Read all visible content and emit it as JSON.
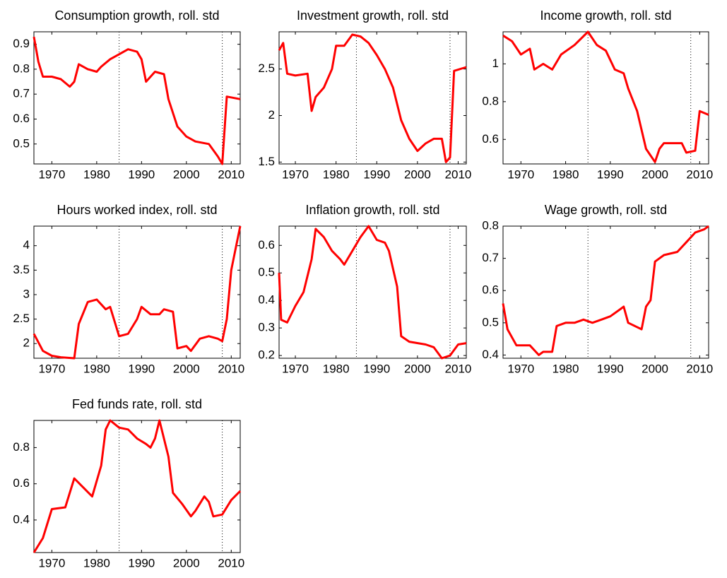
{
  "chart_data": [
    {
      "type": "line",
      "title": "Consumption growth, roll. std",
      "color": "#ff0000",
      "x": [
        1966,
        1967,
        1968,
        1970,
        1972,
        1974,
        1975,
        1976,
        1978,
        1980,
        1981,
        1983,
        1985,
        1987,
        1989,
        1990,
        1991,
        1993,
        1995,
        1996,
        1998,
        2000,
        2002,
        2005,
        2007,
        2008,
        2009,
        2012
      ],
      "values": [
        0.93,
        0.83,
        0.77,
        0.77,
        0.76,
        0.73,
        0.75,
        0.82,
        0.8,
        0.79,
        0.81,
        0.84,
        0.86,
        0.88,
        0.87,
        0.84,
        0.75,
        0.79,
        0.78,
        0.68,
        0.57,
        0.53,
        0.51,
        0.5,
        0.45,
        0.42,
        0.69,
        0.68
      ],
      "xlim": [
        1966,
        2012
      ],
      "xticks": [
        1970,
        1980,
        1990,
        2000,
        2010
      ],
      "ylim": [
        0.42,
        0.95
      ],
      "yticks": [
        0.5,
        0.6,
        0.7,
        0.8,
        0.9
      ],
      "vlines": [
        1985,
        2008
      ]
    },
    {
      "type": "line",
      "title": "Investment growth, roll. std",
      "color": "#ff0000",
      "x": [
        1966,
        1967,
        1968,
        1970,
        1973,
        1974,
        1975,
        1977,
        1979,
        1980,
        1982,
        1984,
        1986,
        1988,
        1990,
        1992,
        1994,
        1996,
        1998,
        2000,
        2002,
        2004,
        2006,
        2007,
        2008,
        2009,
        2012
      ],
      "values": [
        2.7,
        2.78,
        2.45,
        2.43,
        2.45,
        2.05,
        2.2,
        2.3,
        2.5,
        2.75,
        2.75,
        2.87,
        2.85,
        2.78,
        2.65,
        2.5,
        2.3,
        1.95,
        1.75,
        1.62,
        1.7,
        1.75,
        1.75,
        1.5,
        1.55,
        2.48,
        2.52
      ],
      "xlim": [
        1966,
        2012
      ],
      "xticks": [
        1970,
        1980,
        1990,
        2000,
        2010
      ],
      "ylim": [
        1.48,
        2.9
      ],
      "yticks": [
        1.5,
        2,
        2.5
      ],
      "vlines": [
        1985,
        2008
      ]
    },
    {
      "type": "line",
      "title": "Income growth, roll. std",
      "color": "#ff0000",
      "x": [
        1966,
        1968,
        1970,
        1972,
        1973,
        1975,
        1977,
        1979,
        1982,
        1985,
        1987,
        1989,
        1991,
        1993,
        1994,
        1996,
        1997,
        1998,
        2000,
        2001,
        2002,
        2006,
        2007,
        2009,
        2010,
        2012
      ],
      "values": [
        1.15,
        1.12,
        1.05,
        1.08,
        0.97,
        1.0,
        0.97,
        1.05,
        1.1,
        1.17,
        1.1,
        1.07,
        0.97,
        0.95,
        0.87,
        0.75,
        0.65,
        0.55,
        0.48,
        0.55,
        0.58,
        0.58,
        0.53,
        0.54,
        0.75,
        0.73
      ],
      "xlim": [
        1966,
        2012
      ],
      "xticks": [
        1970,
        1980,
        1990,
        2000,
        2010
      ],
      "ylim": [
        0.47,
        1.17
      ],
      "yticks": [
        0.6,
        0.8,
        1
      ],
      "vlines": [
        1985,
        2008
      ]
    },
    {
      "type": "line",
      "title": "Hours worked index, roll. std",
      "color": "#ff0000",
      "x": [
        1966,
        1968,
        1970,
        1972,
        1975,
        1976,
        1978,
        1980,
        1982,
        1983,
        1985,
        1987,
        1989,
        1990,
        1992,
        1994,
        1995,
        1997,
        1998,
        2000,
        2001,
        2003,
        2005,
        2007,
        2008,
        2009,
        2010,
        2012
      ],
      "values": [
        2.2,
        1.85,
        1.75,
        1.72,
        1.7,
        2.4,
        2.85,
        2.9,
        2.7,
        2.75,
        2.15,
        2.2,
        2.5,
        2.75,
        2.6,
        2.6,
        2.7,
        2.65,
        1.9,
        1.95,
        1.85,
        2.1,
        2.15,
        2.1,
        2.05,
        2.5,
        3.5,
        4.4
      ],
      "xlim": [
        1966,
        2012
      ],
      "xticks": [
        1970,
        1980,
        1990,
        2000,
        2010
      ],
      "ylim": [
        1.7,
        4.4
      ],
      "yticks": [
        2,
        2.5,
        3,
        3.5,
        4
      ],
      "vlines": [
        1985,
        2008
      ]
    },
    {
      "type": "line",
      "title": "Inflation growth, roll. std",
      "color": "#ff0000",
      "x": [
        1966,
        1966.5,
        1968,
        1970,
        1972,
        1974,
        1975,
        1977,
        1979,
        1981,
        1982,
        1984,
        1986,
        1988,
        1990,
        1992,
        1993,
        1995,
        1996,
        1998,
        2002,
        2004,
        2006,
        2008,
        2010,
        2012
      ],
      "values": [
        0.5,
        0.33,
        0.32,
        0.38,
        0.43,
        0.55,
        0.66,
        0.63,
        0.58,
        0.55,
        0.53,
        0.58,
        0.63,
        0.67,
        0.62,
        0.61,
        0.58,
        0.45,
        0.27,
        0.25,
        0.24,
        0.23,
        0.19,
        0.2,
        0.24,
        0.245
      ],
      "xlim": [
        1966,
        2012
      ],
      "xticks": [
        1970,
        1980,
        1990,
        2000,
        2010
      ],
      "ylim": [
        0.19,
        0.67
      ],
      "yticks": [
        0.2,
        0.3,
        0.4,
        0.5,
        0.6
      ],
      "vlines": [
        1985,
        2008
      ]
    },
    {
      "type": "line",
      "title": "Wage growth, roll. std",
      "color": "#ff0000",
      "x": [
        1966,
        1967,
        1969,
        1972,
        1974,
        1975,
        1977,
        1978,
        1980,
        1982,
        1984,
        1986,
        1988,
        1990,
        1992,
        1993,
        1994,
        1997,
        1998,
        1999,
        2000,
        2002,
        2005,
        2007,
        2009,
        2011,
        2012
      ],
      "values": [
        0.56,
        0.48,
        0.43,
        0.43,
        0.4,
        0.41,
        0.41,
        0.49,
        0.5,
        0.5,
        0.51,
        0.5,
        0.51,
        0.52,
        0.54,
        0.55,
        0.5,
        0.48,
        0.55,
        0.57,
        0.69,
        0.71,
        0.72,
        0.75,
        0.78,
        0.79,
        0.8
      ],
      "xlim": [
        1966,
        2012
      ],
      "xticks": [
        1970,
        1980,
        1990,
        2000,
        2010
      ],
      "ylim": [
        0.39,
        0.8
      ],
      "yticks": [
        0.4,
        0.5,
        0.6,
        0.7,
        0.8
      ],
      "vlines": [
        1985,
        2008
      ]
    },
    {
      "type": "line",
      "title": "Fed funds rate, roll. std",
      "color": "#ff0000",
      "x": [
        1966,
        1968,
        1970,
        1973,
        1975,
        1977,
        1979,
        1981,
        1982,
        1983,
        1985,
        1987,
        1989,
        1991,
        1992,
        1993,
        1994,
        1996,
        1997,
        1999,
        2001,
        2002,
        2004,
        2005,
        2006,
        2008,
        2010,
        2012
      ],
      "values": [
        0.22,
        0.3,
        0.46,
        0.47,
        0.63,
        0.58,
        0.53,
        0.7,
        0.9,
        0.95,
        0.91,
        0.9,
        0.85,
        0.82,
        0.8,
        0.85,
        0.95,
        0.75,
        0.55,
        0.49,
        0.42,
        0.45,
        0.53,
        0.5,
        0.42,
        0.43,
        0.51,
        0.56
      ],
      "xlim": [
        1966,
        2012
      ],
      "xticks": [
        1970,
        1980,
        1990,
        2000,
        2010
      ],
      "ylim": [
        0.22,
        0.95
      ],
      "yticks": [
        0.4,
        0.6,
        0.8
      ],
      "vlines": [
        1985,
        2008
      ]
    }
  ]
}
